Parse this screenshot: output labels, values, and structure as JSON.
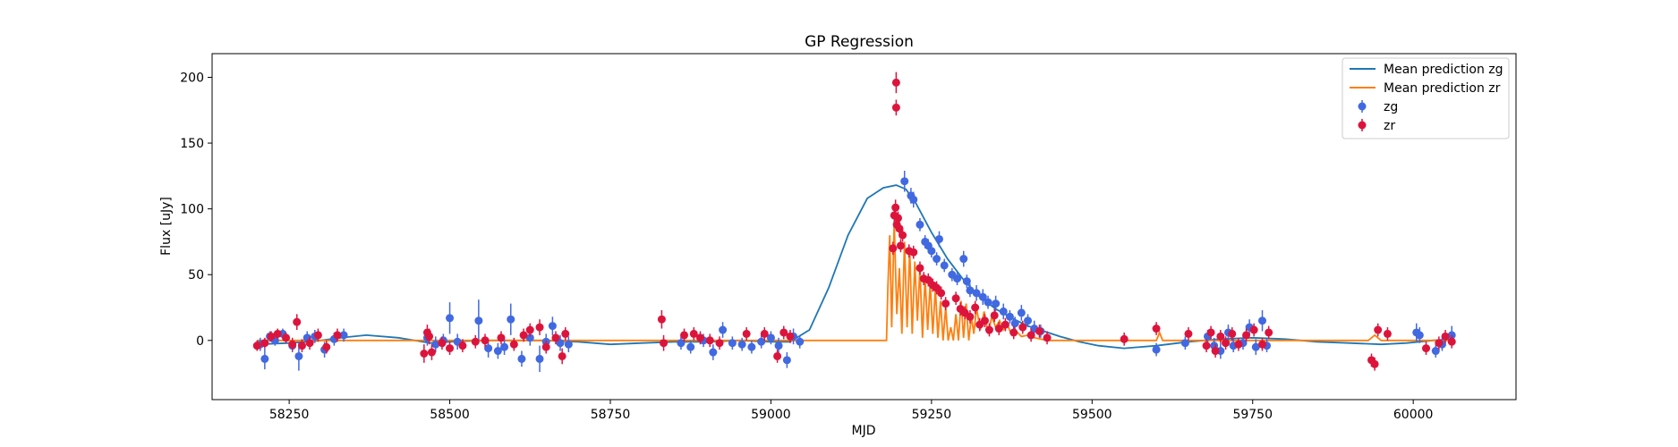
{
  "chart_data": {
    "type": "scatter",
    "title": "GP Regression",
    "xlabel": "MJD",
    "ylabel": "Flux [uJy]",
    "xlim": [
      58130,
      60160
    ],
    "ylim": [
      -45,
      218
    ],
    "xticks": [
      58250,
      58500,
      58750,
      59000,
      59250,
      59500,
      59750,
      60000
    ],
    "yticks": [
      0,
      50,
      100,
      150,
      200
    ],
    "grid": false,
    "legend_position": "top-right",
    "colors": {
      "zg_line": "#1f77b4",
      "zr_line": "#ff7f0e",
      "zg_points": "#4169e1",
      "zr_points": "#dc143c"
    },
    "legend": [
      {
        "label": "Mean prediction zg",
        "kind": "line",
        "color": "#1f77b4"
      },
      {
        "label": "Mean prediction zr",
        "kind": "line",
        "color": "#ff7f0e"
      },
      {
        "label": "zg",
        "kind": "errorbar",
        "color": "#4169e1"
      },
      {
        "label": "zr",
        "kind": "errorbar",
        "color": "#dc143c"
      }
    ],
    "series": [
      {
        "name": "Mean prediction zg",
        "kind": "line",
        "color": "#1f77b4",
        "x": [
          58200,
          58250,
          58300,
          58330,
          58370,
          58420,
          58470,
          58500,
          58550,
          58600,
          58650,
          58700,
          58750,
          58800,
          58850,
          58900,
          58950,
          59000,
          59030,
          59060,
          59090,
          59120,
          59150,
          59175,
          59195,
          59210,
          59225,
          59250,
          59275,
          59300,
          59325,
          59350,
          59375,
          59400,
          59425,
          59450,
          59480,
          59510,
          59550,
          59600,
          59650,
          59700,
          59750,
          59800,
          59850,
          59900,
          59950,
          59990,
          60030,
          60060
        ],
        "y": [
          -3,
          -2,
          0,
          2,
          4,
          2,
          -2,
          -1,
          0,
          0,
          0,
          -1,
          -3,
          -2,
          -1,
          -1,
          0,
          -1,
          -1,
          8,
          40,
          80,
          108,
          116,
          118,
          115,
          105,
          82,
          62,
          46,
          33,
          24,
          17,
          11,
          7,
          3,
          -1,
          -4,
          -6,
          -4,
          -1,
          1,
          2,
          1,
          -1,
          -2,
          -3,
          -2,
          0,
          1
        ]
      },
      {
        "name": "Mean prediction zr",
        "kind": "line",
        "color": "#ff7f0e",
        "x": [
          58200,
          58460,
          58465,
          58470,
          58680,
          58690,
          59040,
          59180,
          59182,
          59185,
          59188,
          59192,
          59196,
          59200,
          59204,
          59208,
          59212,
          59216,
          59220,
          59224,
          59228,
          59232,
          59236,
          59240,
          59244,
          59248,
          59252,
          59256,
          59260,
          59264,
          59268,
          59272,
          59276,
          59280,
          59284,
          59288,
          59292,
          59296,
          59300,
          59304,
          59308,
          59312,
          59316,
          59320,
          59326,
          59332,
          59338,
          59344,
          59350,
          59356,
          59362,
          59368,
          59374,
          59380,
          59390,
          59400,
          59410,
          59420,
          59430,
          59550,
          59600,
          59605,
          59610,
          59700,
          59780,
          59930,
          59940,
          59950,
          60060
        ],
        "y": [
          0,
          0,
          3,
          0,
          0,
          0,
          0,
          0,
          40,
          80,
          10,
          90,
          20,
          55,
          5,
          75,
          10,
          70,
          5,
          60,
          15,
          55,
          2,
          48,
          8,
          44,
          5,
          40,
          2,
          30,
          0,
          25,
          0,
          10,
          0,
          20,
          0,
          30,
          2,
          28,
          0,
          18,
          5,
          25,
          8,
          22,
          5,
          18,
          10,
          15,
          8,
          12,
          5,
          8,
          3,
          4,
          2,
          1,
          0,
          0,
          0,
          6,
          0,
          0,
          0,
          0,
          4,
          0,
          0
        ]
      },
      {
        "name": "zg",
        "kind": "errorbar",
        "color": "#4169e1",
        "x": [
          58205,
          58212,
          58220,
          58228,
          58240,
          58255,
          58265,
          58278,
          58290,
          58305,
          58320,
          58335,
          58465,
          58478,
          58490,
          58500,
          58512,
          58545,
          58560,
          58575,
          58585,
          58595,
          58612,
          58625,
          58640,
          58650,
          58660,
          58672,
          58685,
          58860,
          58875,
          58895,
          58910,
          58925,
          58940,
          58955,
          58970,
          58985,
          59000,
          59012,
          59025,
          59035,
          59045,
          59208,
          59218,
          59222,
          59232,
          59240,
          59245,
          59250,
          59258,
          59262,
          59270,
          59282,
          59290,
          59300,
          59305,
          59310,
          59320,
          59330,
          59338,
          59350,
          59362,
          59372,
          59380,
          59390,
          59400,
          59410,
          59420,
          59600,
          59645,
          59680,
          59690,
          59700,
          59712,
          59720,
          59735,
          59745,
          59755,
          59765,
          59772,
          60005,
          60010,
          60035,
          60045,
          60060
        ],
        "y": [
          -3,
          -14,
          3,
          0,
          5,
          -4,
          -12,
          2,
          3,
          -7,
          1,
          4,
          2,
          -3,
          0,
          17,
          -1,
          15,
          -6,
          -8,
          -5,
          16,
          -14,
          2,
          -14,
          -1,
          11,
          -2,
          -3,
          -2,
          -5,
          0,
          -9,
          8,
          -2,
          -3,
          -5,
          -1,
          2,
          -4,
          -15,
          3,
          -1,
          121,
          110,
          107,
          88,
          75,
          72,
          68,
          62,
          77,
          57,
          50,
          47,
          62,
          45,
          38,
          36,
          33,
          29,
          28,
          22,
          18,
          13,
          21,
          15,
          9,
          7,
          -7,
          -2,
          3,
          -4,
          -8,
          6,
          -4,
          -2,
          10,
          -5,
          15,
          -4,
          6,
          4,
          -8,
          -3,
          4
        ],
        "err": [
          5,
          8,
          4,
          4,
          4,
          5,
          11,
          5,
          5,
          6,
          5,
          5,
          6,
          6,
          5,
          12,
          6,
          16,
          7,
          6,
          6,
          12,
          6,
          6,
          10,
          6,
          7,
          6,
          6,
          5,
          5,
          5,
          6,
          6,
          5,
          5,
          5,
          5,
          5,
          6,
          6,
          6,
          5,
          8,
          6,
          6,
          5,
          5,
          5,
          5,
          5,
          6,
          5,
          5,
          5,
          6,
          5,
          5,
          6,
          6,
          5,
          6,
          6,
          5,
          5,
          6,
          5,
          6,
          5,
          5,
          5,
          5,
          6,
          6,
          6,
          5,
          5,
          6,
          6,
          8,
          5,
          7,
          6,
          5,
          5,
          7
        ]
      },
      {
        "name": "zr",
        "kind": "errorbar",
        "color": "#dc143c",
        "x": [
          58200,
          58212,
          58222,
          58232,
          58245,
          58255,
          58262,
          58270,
          58282,
          58295,
          58308,
          58325,
          58460,
          58465,
          58468,
          58472,
          58488,
          58500,
          58520,
          58540,
          58555,
          58580,
          58600,
          58615,
          58625,
          58640,
          58650,
          58665,
          58675,
          58680,
          58830,
          58833,
          58865,
          58880,
          58890,
          58905,
          58920,
          58962,
          58990,
          59010,
          59020,
          59030,
          59190,
          59192,
          59194,
          59196,
          59198,
          59200,
          59202,
          59205,
          59215,
          59222,
          59232,
          59238,
          59245,
          59252,
          59258,
          59265,
          59272,
          59288,
          59295,
          59302,
          59310,
          59318,
          59325,
          59333,
          59340,
          59348,
          59355,
          59365,
          59378,
          59392,
          59405,
          59418,
          59430,
          59550,
          59600,
          59650,
          59678,
          59685,
          59692,
          59700,
          59708,
          59718,
          59728,
          59740,
          59752,
          59765,
          59775,
          59935,
          59940,
          59945,
          59960,
          60020,
          60040,
          60050,
          60060
        ],
        "y": [
          -4,
          -2,
          3,
          5,
          2,
          -3,
          14,
          -4,
          -2,
          4,
          -5,
          4,
          -10,
          6,
          3,
          -9,
          -2,
          -6,
          -4,
          -1,
          0,
          2,
          -3,
          4,
          8,
          10,
          -5,
          2,
          -12,
          5,
          16,
          -2,
          4,
          5,
          2,
          0,
          -2,
          5,
          5,
          -12,
          6,
          3,
          70,
          95,
          101,
          88,
          93,
          85,
          72,
          80,
          68,
          67,
          55,
          47,
          46,
          42,
          40,
          36,
          28,
          32,
          24,
          21,
          18,
          25,
          12,
          15,
          8,
          19,
          9,
          12,
          6,
          10,
          4,
          7,
          2,
          1,
          9,
          5,
          -4,
          6,
          -8,
          3,
          -2,
          5,
          -3,
          4,
          8,
          -3,
          6,
          -15,
          -18,
          8,
          5,
          -6,
          -2,
          3,
          -1
        ],
        "err": [
          4,
          4,
          4,
          4,
          4,
          5,
          6,
          5,
          5,
          5,
          5,
          5,
          7,
          6,
          6,
          6,
          5,
          5,
          5,
          5,
          5,
          5,
          5,
          5,
          5,
          6,
          5,
          5,
          6,
          5,
          7,
          6,
          5,
          5,
          5,
          5,
          5,
          5,
          5,
          5,
          5,
          5,
          5,
          6,
          6,
          5,
          5,
          5,
          5,
          5,
          5,
          5,
          5,
          5,
          5,
          5,
          5,
          5,
          5,
          5,
          5,
          5,
          5,
          5,
          5,
          5,
          5,
          5,
          5,
          5,
          5,
          5,
          5,
          5,
          5,
          5,
          5,
          5,
          5,
          5,
          5,
          5,
          5,
          5,
          5,
          5,
          5,
          5,
          5,
          5,
          5,
          5,
          5,
          5,
          5,
          5,
          5
        ]
      },
      {
        "name": "zr",
        "kind": "errorbar",
        "color": "#dc143c",
        "x": [
          59195,
          59195
        ],
        "y": [
          196,
          177
        ],
        "err": [
          8,
          6
        ]
      }
    ]
  }
}
